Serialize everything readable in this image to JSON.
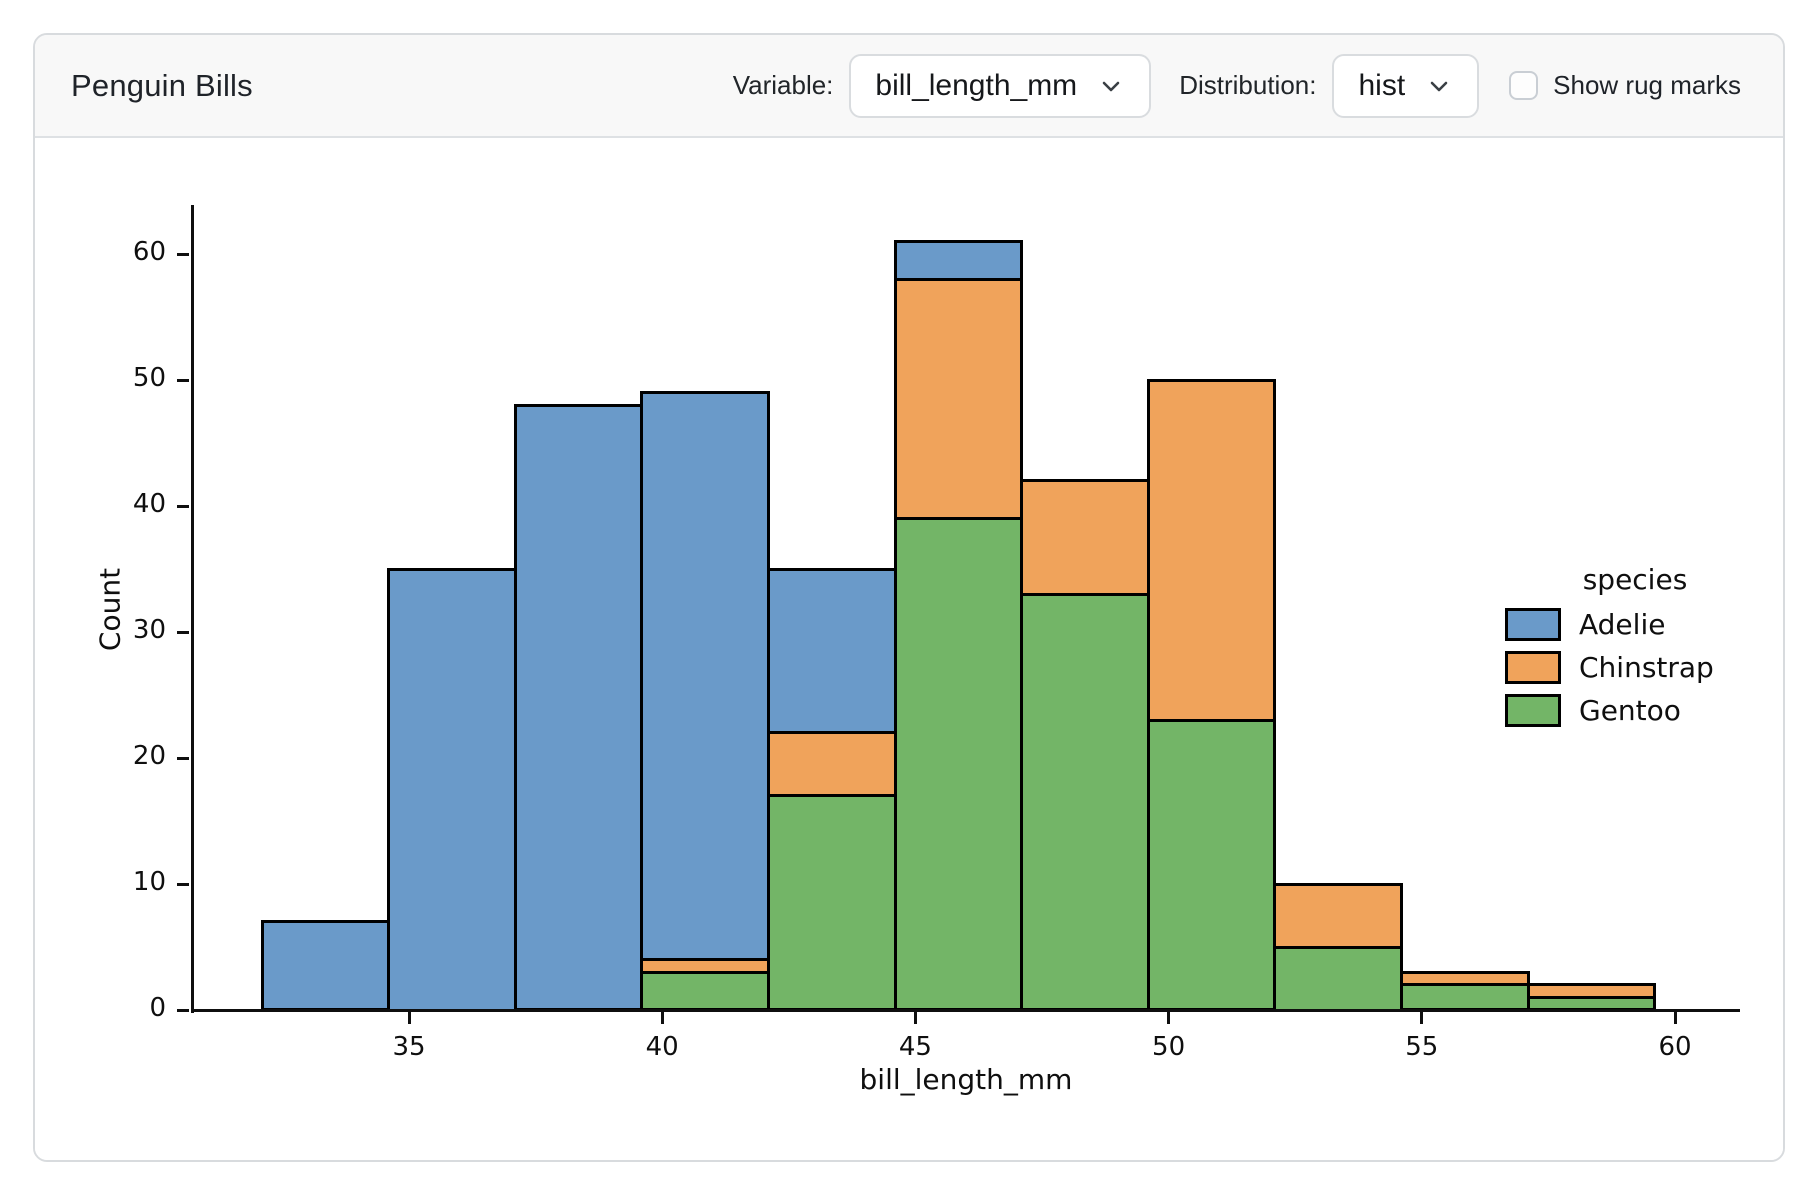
{
  "header": {
    "title": "Penguin Bills",
    "variable_label": "Variable:",
    "variable_select": {
      "value": "bill_length_mm"
    },
    "distribution_label": "Distribution:",
    "distribution_select": {
      "value": "hist"
    },
    "rug_checkbox": {
      "label": "Show rug marks",
      "checked": false
    }
  },
  "chart_data": {
    "type": "bar",
    "subtype": "stacked-histogram",
    "title": "",
    "xlabel": "bill_length_mm",
    "ylabel": "Count",
    "x_ticks": [
      35,
      40,
      45,
      50,
      55,
      60
    ],
    "y_ticks": [
      0,
      10,
      20,
      30,
      40,
      50,
      60
    ],
    "xlim": [
      30.7,
      61.3
    ],
    "ylim": [
      0,
      63.9
    ],
    "grid": false,
    "bin_edges": [
      32.1,
      34.6,
      37.1,
      39.6,
      42.1,
      44.6,
      47.1,
      49.6,
      52.1,
      54.6,
      57.1,
      59.6
    ],
    "stack_order_bottom_to_top": [
      "Gentoo",
      "Chinstrap",
      "Adelie"
    ],
    "series": [
      {
        "name": "Gentoo",
        "color": "#73B567",
        "values": [
          0,
          0,
          0,
          3,
          17,
          39,
          33,
          23,
          5,
          2,
          1
        ]
      },
      {
        "name": "Chinstrap",
        "color": "#F0A35B",
        "values": [
          0,
          0,
          0,
          1,
          5,
          19,
          9,
          27,
          5,
          1,
          1
        ]
      },
      {
        "name": "Adelie",
        "color": "#6A9AC9",
        "values": [
          7,
          35,
          48,
          45,
          13,
          3,
          0,
          0,
          0,
          0,
          0
        ]
      }
    ],
    "stack_totals": [
      7,
      35,
      48,
      49,
      35,
      61,
      42,
      50,
      10,
      3,
      2
    ],
    "bar_edge_color": "#000000",
    "axis_color": "#0f0f0f",
    "legend": {
      "title": "species",
      "position": "right",
      "entries": [
        {
          "label": "Adelie",
          "color": "#6A9AC9"
        },
        {
          "label": "Chinstrap",
          "color": "#F0A35B"
        },
        {
          "label": "Gentoo",
          "color": "#73B567"
        }
      ]
    }
  }
}
